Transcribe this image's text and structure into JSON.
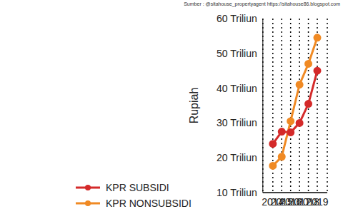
{
  "chart_data": {
    "type": "line",
    "annotation": "Sumber : @sitahouse_propertyagent https://sitahouse86.blogspot.com",
    "y_label": "Rupiah",
    "categories": [
      "2014",
      "2015",
      "2016",
      "2017",
      "2018",
      "2019"
    ],
    "series": [
      {
        "name": "KPR SUBSIDI",
        "color": "#d42a2a",
        "marker": "circle",
        "values": [
          24,
          27.5,
          27.3,
          30,
          35.5,
          45
        ]
      },
      {
        "name": "KPR NONSUBSIDI",
        "color": "#f08a24",
        "marker": "circle",
        "values": [
          17.7,
          20.3,
          30.5,
          41,
          47,
          54.5
        ]
      }
    ],
    "ylim": [
      10,
      60
    ],
    "yticks": [
      {
        "value": 10,
        "label": "10 Triliun"
      },
      {
        "value": 20,
        "label": "20 Triliun"
      },
      {
        "value": 30,
        "label": "30 Triliun"
      },
      {
        "value": 40,
        "label": "40 Triliun"
      },
      {
        "value": 50,
        "label": "50 Triliun"
      },
      {
        "value": 60,
        "label": "60 Triliun"
      }
    ],
    "grid": "x",
    "legend": "bottom-left"
  }
}
